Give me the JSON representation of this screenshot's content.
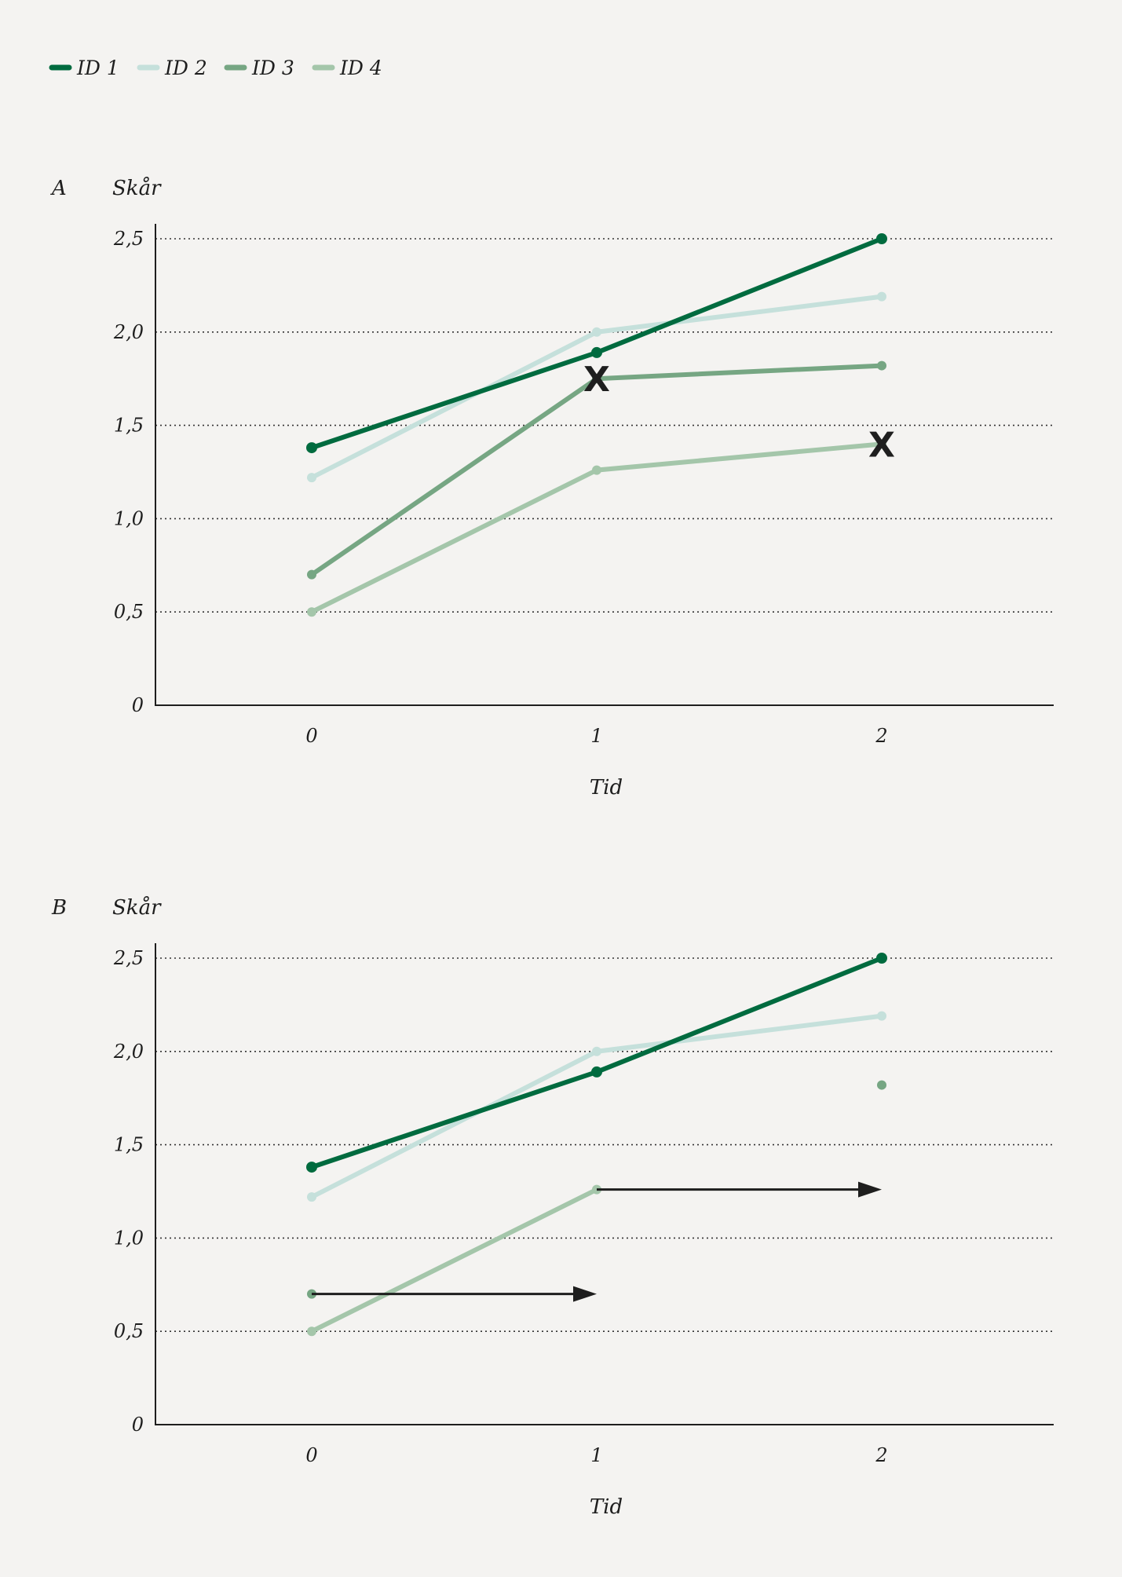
{
  "legend": [
    {
      "label": "ID 1",
      "color": "#006b3f"
    },
    {
      "label": "ID 2",
      "color": "#c5e0db"
    },
    {
      "label": "ID 3",
      "color": "#76a683"
    },
    {
      "label": "ID 4",
      "color": "#a4c6aa"
    }
  ],
  "chart_data": [
    {
      "type": "line",
      "panel_label": "A",
      "title": "",
      "ylabel": "Skår",
      "xlabel": "Tid",
      "x": [
        0,
        1,
        2
      ],
      "x_ticks": [
        "0",
        "1",
        "2"
      ],
      "y_ticks": [
        "0",
        "0,5",
        "1,0",
        "1,5",
        "2,0",
        "2,5"
      ],
      "y_tick_values": [
        0,
        0.5,
        1.0,
        1.5,
        2.0,
        2.5
      ],
      "xlim": [
        -0.55,
        2.6
      ],
      "ylim": [
        0,
        2.55
      ],
      "grid": "horizontal dotted",
      "series": [
        {
          "name": "ID 1",
          "color": "#006b3f",
          "values": [
            1.38,
            1.89,
            2.5
          ]
        },
        {
          "name": "ID 2",
          "color": "#c5e0db",
          "values": [
            1.22,
            2.0,
            2.19
          ]
        },
        {
          "name": "ID 3",
          "color": "#76a683",
          "values": [
            0.7,
            1.75,
            1.82
          ]
        },
        {
          "name": "ID 4",
          "color": "#a4c6aa",
          "values": [
            0.5,
            1.26,
            1.4
          ]
        }
      ],
      "annotations": [
        {
          "text": "X",
          "x": 1,
          "y": 1.75
        },
        {
          "text": "X",
          "x": 2,
          "y": 1.4
        }
      ],
      "arrows": []
    },
    {
      "type": "line",
      "panel_label": "B",
      "title": "",
      "ylabel": "Skår",
      "xlabel": "Tid",
      "x": [
        0,
        1,
        2
      ],
      "x_ticks": [
        "0",
        "1",
        "2"
      ],
      "y_ticks": [
        "0",
        "0,5",
        "1,0",
        "1,5",
        "2,0",
        "2,5"
      ],
      "y_tick_values": [
        0,
        0.5,
        1.0,
        1.5,
        2.0,
        2.5
      ],
      "xlim": [
        -0.55,
        2.6
      ],
      "ylim": [
        0,
        2.55
      ],
      "grid": "horizontal dotted",
      "series": [
        {
          "name": "ID 1",
          "color": "#006b3f",
          "values": [
            1.38,
            1.89,
            2.5
          ]
        },
        {
          "name": "ID 2",
          "color": "#c5e0db",
          "values": [
            1.22,
            2.0,
            2.19
          ]
        },
        {
          "name": "ID 3",
          "color": "#76a683",
          "values": [
            0.7,
            null,
            1.82
          ]
        },
        {
          "name": "ID 4",
          "color": "#a4c6aa",
          "values": [
            0.5,
            1.26,
            null
          ]
        }
      ],
      "annotations": [],
      "arrows": [
        {
          "from": [
            0,
            0.7
          ],
          "to": [
            1,
            0.7
          ]
        },
        {
          "from": [
            1,
            1.26
          ],
          "to": [
            2,
            1.26
          ]
        }
      ]
    }
  ]
}
